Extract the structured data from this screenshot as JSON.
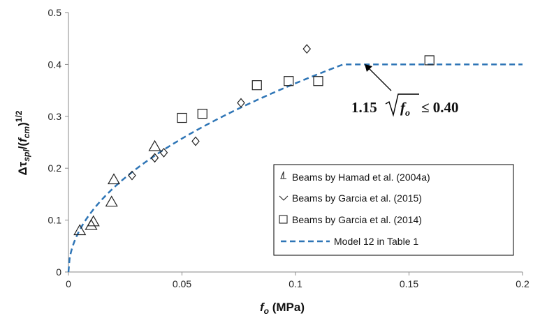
{
  "chart_data": {
    "type": "scatter",
    "xlim": [
      0,
      0.2
    ],
    "ylim": [
      0,
      0.5
    ],
    "x_ticks": [
      "0",
      "0.05",
      "0.1",
      "0.15",
      "0.2"
    ],
    "y_ticks": [
      "0",
      "0.1",
      "0.2",
      "0.3",
      "0.4",
      "0.5"
    ],
    "x_tick_values": [
      0,
      0.05,
      0.1,
      0.15,
      0.2
    ],
    "y_tick_values": [
      0,
      0.1,
      0.2,
      0.3,
      0.4,
      0.5
    ],
    "xlabel": {
      "main": "f",
      "sub": "o",
      "rest": " (MPa)"
    },
    "ylabel": {
      "p1": "Δτ",
      "sub1": "spl",
      "p2": "/(",
      "p3": "f",
      "sub2": "cm",
      "p4": ")",
      "sup": "1/2"
    },
    "grid": false,
    "legend_position": "bottom-right",
    "series": [
      {
        "name": "Beams by Hamad et al. (2004a)",
        "marker": "triangle",
        "x": [
          0.005,
          0.01,
          0.011,
          0.019,
          0.02,
          0.038
        ],
        "y": [
          0.08,
          0.09,
          0.097,
          0.135,
          0.178,
          0.242
        ]
      },
      {
        "name": "Beams by Garcia et al. (2015)",
        "marker": "diamond",
        "x": [
          0.028,
          0.038,
          0.042,
          0.056,
          0.076,
          0.105
        ],
        "y": [
          0.186,
          0.22,
          0.23,
          0.252,
          0.326,
          0.43
        ]
      },
      {
        "name": "Beams by Garcia et al. (2014)",
        "marker": "square",
        "x": [
          0.05,
          0.059,
          0.083,
          0.097,
          0.11,
          0.159
        ],
        "y": [
          0.297,
          0.305,
          0.36,
          0.368,
          0.368,
          0.408
        ]
      },
      {
        "name": "Model 12 in Table 1",
        "marker": "dashed-line",
        "formula": "y = min(1.15*sqrt(x), 0.40)",
        "coefficient": 1.15,
        "cap": 0.4
      }
    ],
    "annotation": {
      "text": "1.15",
      "var": "f",
      "var_sub": "o",
      "rel": " ≤ 0.40",
      "points_to": [
        0.12,
        0.4
      ]
    }
  },
  "colors": {
    "model_line": "#2E75B6",
    "markers": "#222222",
    "axis": "#7f7f7f"
  }
}
